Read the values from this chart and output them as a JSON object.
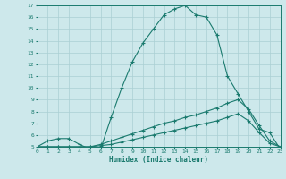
{
  "xlabel": "Humidex (Indice chaleur)",
  "xlim": [
    0,
    23
  ],
  "ylim": [
    5,
    17
  ],
  "yticks": [
    5,
    6,
    7,
    8,
    9,
    10,
    11,
    12,
    13,
    14,
    15,
    16,
    17
  ],
  "xticks": [
    0,
    1,
    2,
    3,
    4,
    5,
    6,
    7,
    8,
    9,
    10,
    11,
    12,
    13,
    14,
    15,
    16,
    17,
    18,
    19,
    20,
    21,
    22,
    23
  ],
  "bg_color": "#cde8eb",
  "line_color": "#1a7a6e",
  "grid_color": "#aacfd4",
  "lines": [
    {
      "x": [
        0,
        1,
        2,
        3,
        4,
        5,
        6,
        7,
        8,
        9,
        10,
        11,
        12,
        13,
        14,
        15,
        16,
        17,
        18,
        19,
        20,
        21,
        22,
        23
      ],
      "y": [
        5.0,
        5.5,
        5.7,
        5.7,
        5.2,
        4.8,
        4.8,
        7.5,
        10.0,
        12.2,
        13.8,
        15.0,
        16.2,
        16.7,
        17.0,
        16.2,
        16.0,
        14.5,
        11.0,
        9.5,
        8.0,
        6.5,
        6.2,
        4.8
      ]
    },
    {
      "x": [
        0,
        1,
        2,
        3,
        4,
        5,
        6,
        7,
        8,
        9,
        10,
        11,
        12,
        13,
        14,
        15,
        16,
        17,
        18,
        19,
        20,
        21,
        22,
        23
      ],
      "y": [
        5.0,
        5.0,
        5.0,
        5.0,
        5.0,
        5.0,
        5.2,
        5.5,
        5.8,
        6.1,
        6.4,
        6.7,
        7.0,
        7.2,
        7.5,
        7.7,
        8.0,
        8.3,
        8.7,
        9.0,
        8.2,
        6.8,
        5.5,
        5.0
      ]
    },
    {
      "x": [
        0,
        1,
        2,
        3,
        4,
        5,
        6,
        7,
        8,
        9,
        10,
        11,
        12,
        13,
        14,
        15,
        16,
        17,
        18,
        19,
        20,
        21,
        22,
        23
      ],
      "y": [
        5.0,
        5.0,
        5.0,
        5.0,
        5.0,
        5.0,
        5.1,
        5.2,
        5.4,
        5.6,
        5.8,
        6.0,
        6.2,
        6.4,
        6.6,
        6.8,
        7.0,
        7.2,
        7.5,
        7.8,
        7.2,
        6.2,
        5.3,
        5.0
      ]
    }
  ]
}
